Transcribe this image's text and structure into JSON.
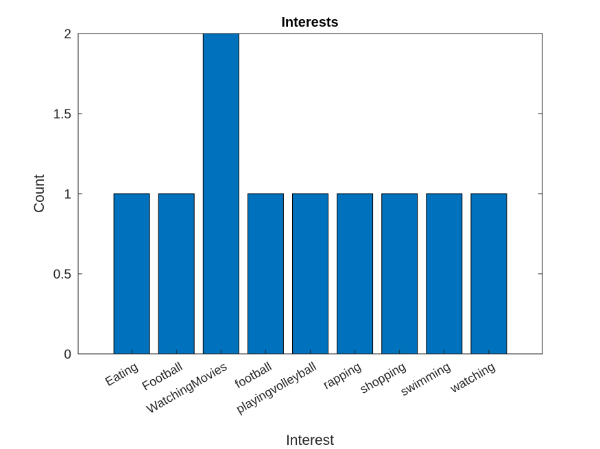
{
  "chart_data": {
    "type": "bar",
    "title": "Interests",
    "xlabel": "Interest",
    "ylabel": "Count",
    "categories": [
      "Eating",
      "Football",
      "WatchingMovies",
      "football",
      "playingvolleyball",
      "rapping",
      "shopping",
      "swimming",
      "watching"
    ],
    "values": [
      1,
      1,
      2,
      1,
      1,
      1,
      1,
      1,
      1
    ],
    "ylim": [
      0,
      2
    ],
    "yticks": [
      "0",
      "0.5",
      "1",
      "1.5",
      "2"
    ],
    "grid": false,
    "legend": "none",
    "bar_color": "#0072BD",
    "bar_edge_color": "#000000"
  }
}
